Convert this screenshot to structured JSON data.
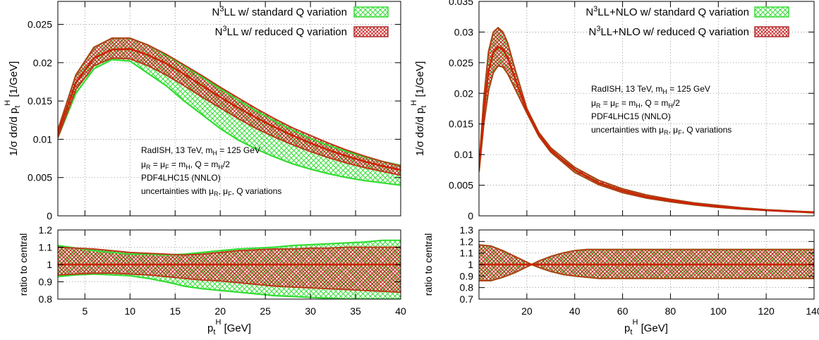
{
  "chart_data": [
    {
      "type": "area",
      "panel": "left-main",
      "ylabel_parts": {
        "lead": "1/σ dσ/d p",
        "sub": "t",
        "sup": "H",
        "tail": " [1/GeV]"
      },
      "xlim": [
        2,
        40
      ],
      "ylim": [
        0,
        0.028
      ],
      "yticks": [
        "0",
        "0.005",
        "0.01",
        "0.015",
        "0.02",
        "0.025"
      ],
      "ytick_values": [
        0,
        0.005,
        0.01,
        0.015,
        0.02,
        0.025
      ],
      "grid": true,
      "legend_position": "top-right",
      "legend": [
        {
          "pre": "N",
          "sup": "3",
          "post": "LL w/ standard Q variation",
          "pattern": "green-hatch"
        },
        {
          "pre": "N",
          "sup": "3",
          "post": "LL w/ reduced Q variation",
          "pattern": "red-hatch"
        }
      ],
      "annotation": [
        "RadISH, 13 TeV, m_H = 125 GeV",
        "μ_R = μ_F = m_H, Q = m_H/2",
        "PDF4LHC15 (NNLO)",
        "uncertainties with μ_R, μ_F, Q variations"
      ],
      "x": [
        2,
        4,
        6,
        8,
        10,
        12,
        14,
        16,
        18,
        20,
        22,
        24,
        26,
        28,
        30,
        32,
        34,
        36,
        38,
        40
      ],
      "series": [
        {
          "name": "N3LL w/ standard Q variation",
          "lower": [
            0.0102,
            0.016,
            0.0192,
            0.0204,
            0.0202,
            0.0186,
            0.017,
            0.015,
            0.0132,
            0.0114,
            0.0099,
            0.0087,
            0.0077,
            0.0068,
            0.0061,
            0.0055,
            0.005,
            0.0046,
            0.0043,
            0.004
          ],
          "upper": [
            0.0112,
            0.0184,
            0.022,
            0.0232,
            0.0232,
            0.0223,
            0.021,
            0.0196,
            0.0181,
            0.0166,
            0.0151,
            0.0137,
            0.0124,
            0.0112,
            0.0101,
            0.0092,
            0.0084,
            0.0077,
            0.0071,
            0.0066
          ]
        },
        {
          "name": "N3LL w/ reduced Q variation",
          "lower": [
            0.0102,
            0.0165,
            0.0196,
            0.0206,
            0.0205,
            0.0196,
            0.0184,
            0.017,
            0.0155,
            0.0141,
            0.0127,
            0.0114,
            0.0103,
            0.0093,
            0.0084,
            0.0076,
            0.0069,
            0.0063,
            0.0058,
            0.0053
          ],
          "central": [
            0.0107,
            0.0174,
            0.0206,
            0.0217,
            0.0218,
            0.021,
            0.0199,
            0.0185,
            0.017,
            0.0155,
            0.0141,
            0.0128,
            0.0116,
            0.0105,
            0.0095,
            0.0086,
            0.0078,
            0.0071,
            0.0065,
            0.006
          ],
          "upper": [
            0.0112,
            0.0184,
            0.022,
            0.0232,
            0.0232,
            0.0223,
            0.0211,
            0.0197,
            0.0183,
            0.0168,
            0.0154,
            0.014,
            0.0127,
            0.0115,
            0.0105,
            0.0095,
            0.0086,
            0.0078,
            0.0071,
            0.0065
          ]
        }
      ]
    },
    {
      "type": "area",
      "panel": "left-ratio",
      "ylabel": "ratio to central",
      "xlim": [
        2,
        40
      ],
      "ylim": [
        0.8,
        1.2
      ],
      "yticks": [
        "0.8",
        "0.9",
        "1",
        "1.1",
        "1.2"
      ],
      "ytick_values": [
        0.8,
        0.9,
        1.0,
        1.1,
        1.2
      ],
      "xticks": [
        "5",
        "10",
        "15",
        "20",
        "25",
        "30",
        "35",
        "40"
      ],
      "xtick_values": [
        5,
        10,
        15,
        20,
        25,
        30,
        35,
        40
      ],
      "xlabel_parts": {
        "lead": "p",
        "sub": "t",
        "sup": "H",
        "tail": " [GeV]"
      },
      "grid": true,
      "x": [
        2,
        4,
        6,
        8,
        10,
        12,
        14,
        16,
        18,
        20,
        22,
        24,
        26,
        28,
        30,
        32,
        34,
        36,
        38,
        40
      ],
      "series": [
        {
          "name": "N3LL w/ standard Q variation",
          "lower": [
            0.93,
            0.94,
            0.945,
            0.94,
            0.935,
            0.92,
            0.9,
            0.875,
            0.86,
            0.85,
            0.84,
            0.83,
            0.82,
            0.815,
            0.81,
            0.805,
            0.8,
            0.8,
            0.8,
            0.8
          ],
          "upper": [
            1.11,
            1.095,
            1.08,
            1.07,
            1.06,
            1.06,
            1.055,
            1.06,
            1.07,
            1.08,
            1.09,
            1.095,
            1.1,
            1.11,
            1.115,
            1.12,
            1.125,
            1.13,
            1.14,
            1.14
          ]
        },
        {
          "name": "N3LL w/ reduced Q variation",
          "lower": [
            0.94,
            0.945,
            0.95,
            0.95,
            0.945,
            0.94,
            0.93,
            0.92,
            0.91,
            0.905,
            0.895,
            0.885,
            0.875,
            0.87,
            0.865,
            0.86,
            0.855,
            0.85,
            0.845,
            0.84
          ],
          "central": [
            1,
            1,
            1,
            1,
            1,
            1,
            1,
            1,
            1,
            1,
            1,
            1,
            1,
            1,
            1,
            1,
            1,
            1,
            1,
            1
          ],
          "upper": [
            1.1,
            1.095,
            1.09,
            1.08,
            1.07,
            1.065,
            1.06,
            1.055,
            1.06,
            1.07,
            1.08,
            1.085,
            1.09,
            1.09,
            1.095,
            1.095,
            1.1,
            1.1,
            1.1,
            1.1
          ]
        }
      ]
    },
    {
      "type": "area",
      "panel": "right-main",
      "ylabel_parts": {
        "lead": "1/σ dσ/d p",
        "sub": "t",
        "sup": "H",
        "tail": " [1/GeV]"
      },
      "xlim": [
        0,
        140
      ],
      "ylim": [
        0,
        0.035
      ],
      "yticks": [
        "0",
        "0.005",
        "0.01",
        "0.015",
        "0.02",
        "0.025",
        "0.03",
        "0.035"
      ],
      "ytick_values": [
        0,
        0.005,
        0.01,
        0.015,
        0.02,
        0.025,
        0.03,
        0.035
      ],
      "grid": true,
      "legend_position": "top-right",
      "legend": [
        {
          "pre": "N",
          "sup": "3",
          "post": "LL+NLO  w/ standard Q variation",
          "pattern": "green-hatch"
        },
        {
          "pre": "N",
          "sup": "3",
          "post": "LL+NLO  w/ reduced Q variation",
          "pattern": "red-hatch"
        }
      ],
      "annotation": [
        "RadISH, 13 TeV, m_H = 125 GeV",
        "μ_R = μ_F = m_H, Q = m_H/2",
        "PDF4LHC15 (NNLO)",
        "uncertainties with μ_R, μ_F, Q variations"
      ],
      "x": [
        0,
        2,
        4,
        6,
        8,
        10,
        12,
        15,
        20,
        25,
        30,
        40,
        50,
        60,
        70,
        80,
        90,
        100,
        110,
        120,
        130,
        140
      ],
      "series": [
        {
          "name": "N3LL+NLO w/ standard Q variation",
          "lower": [
            0.0072,
            0.015,
            0.0205,
            0.0234,
            0.0245,
            0.0243,
            0.0232,
            0.0208,
            0.0168,
            0.013,
            0.0104,
            0.0071,
            0.0051,
            0.0038,
            0.0029,
            0.0023,
            0.0018,
            0.0014,
            0.0011,
            0.0009,
            0.0007,
            0.0005
          ],
          "upper": [
            0.0078,
            0.019,
            0.0268,
            0.03,
            0.0307,
            0.03,
            0.0282,
            0.024,
            0.0175,
            0.0136,
            0.0111,
            0.0079,
            0.0058,
            0.0044,
            0.0034,
            0.0027,
            0.0021,
            0.0017,
            0.0013,
            0.001,
            0.0008,
            0.0006
          ]
        },
        {
          "name": "N3LL+NLO w/ reduced Q variation",
          "lower": [
            0.0072,
            0.015,
            0.0205,
            0.0234,
            0.0245,
            0.0243,
            0.0232,
            0.0208,
            0.0168,
            0.013,
            0.0104,
            0.0071,
            0.0051,
            0.0038,
            0.0029,
            0.0023,
            0.0018,
            0.0014,
            0.0011,
            0.0009,
            0.0007,
            0.0005
          ],
          "central": [
            0.0075,
            0.017,
            0.0237,
            0.0267,
            0.0276,
            0.0272,
            0.0258,
            0.0225,
            0.0171,
            0.0133,
            0.0107,
            0.0075,
            0.0054,
            0.0041,
            0.0031,
            0.0025,
            0.0019,
            0.0015,
            0.0012,
            0.0009,
            0.0007,
            0.0006
          ],
          "upper": [
            0.0078,
            0.019,
            0.0268,
            0.03,
            0.0307,
            0.03,
            0.0282,
            0.024,
            0.0175,
            0.0136,
            0.0111,
            0.0079,
            0.0058,
            0.0044,
            0.0034,
            0.0027,
            0.0021,
            0.0017,
            0.0013,
            0.001,
            0.0008,
            0.0006
          ]
        }
      ]
    },
    {
      "type": "area",
      "panel": "right-ratio",
      "ylabel": "ratio to central",
      "xlim": [
        0,
        140
      ],
      "ylim": [
        0.7,
        1.3
      ],
      "yticks": [
        "0.7",
        "0.8",
        "0.9",
        "1",
        "1.1",
        "1.2",
        "1.3"
      ],
      "ytick_values": [
        0.7,
        0.8,
        0.9,
        1.0,
        1.1,
        1.2,
        1.3
      ],
      "xticks": [
        "20",
        "40",
        "60",
        "80",
        "100",
        "120",
        "140"
      ],
      "xtick_values": [
        20,
        40,
        60,
        80,
        100,
        120,
        140
      ],
      "xlabel_parts": {
        "lead": "p",
        "sub": "t",
        "sup": "H",
        "tail": " [GeV]"
      },
      "grid": true,
      "x": [
        0,
        5,
        10,
        15,
        20,
        22,
        25,
        30,
        35,
        40,
        45,
        50,
        60,
        80,
        100,
        120,
        140
      ],
      "series": [
        {
          "name": "N3LL+NLO w/ standard Q variation",
          "lower": [
            0.86,
            0.86,
            0.89,
            0.93,
            0.98,
            1.0,
            0.975,
            0.94,
            0.915,
            0.9,
            0.89,
            0.88,
            0.88,
            0.88,
            0.88,
            0.88,
            0.88
          ],
          "upper": [
            1.17,
            1.16,
            1.12,
            1.07,
            1.02,
            1.0,
            1.03,
            1.07,
            1.1,
            1.12,
            1.13,
            1.13,
            1.13,
            1.13,
            1.13,
            1.13,
            1.13
          ]
        },
        {
          "name": "N3LL+NLO w/ reduced Q variation",
          "lower": [
            0.86,
            0.86,
            0.89,
            0.93,
            0.98,
            1.0,
            0.975,
            0.94,
            0.915,
            0.9,
            0.89,
            0.88,
            0.88,
            0.88,
            0.88,
            0.88,
            0.88
          ],
          "central": [
            1,
            1,
            1,
            1,
            1,
            1,
            1,
            1,
            1,
            1,
            1,
            1,
            1,
            1,
            1,
            1,
            1
          ],
          "upper": [
            1.17,
            1.16,
            1.12,
            1.07,
            1.02,
            1.0,
            1.03,
            1.07,
            1.1,
            1.12,
            1.13,
            1.13,
            1.13,
            1.13,
            1.13,
            1.13,
            1.13
          ]
        }
      ]
    }
  ]
}
